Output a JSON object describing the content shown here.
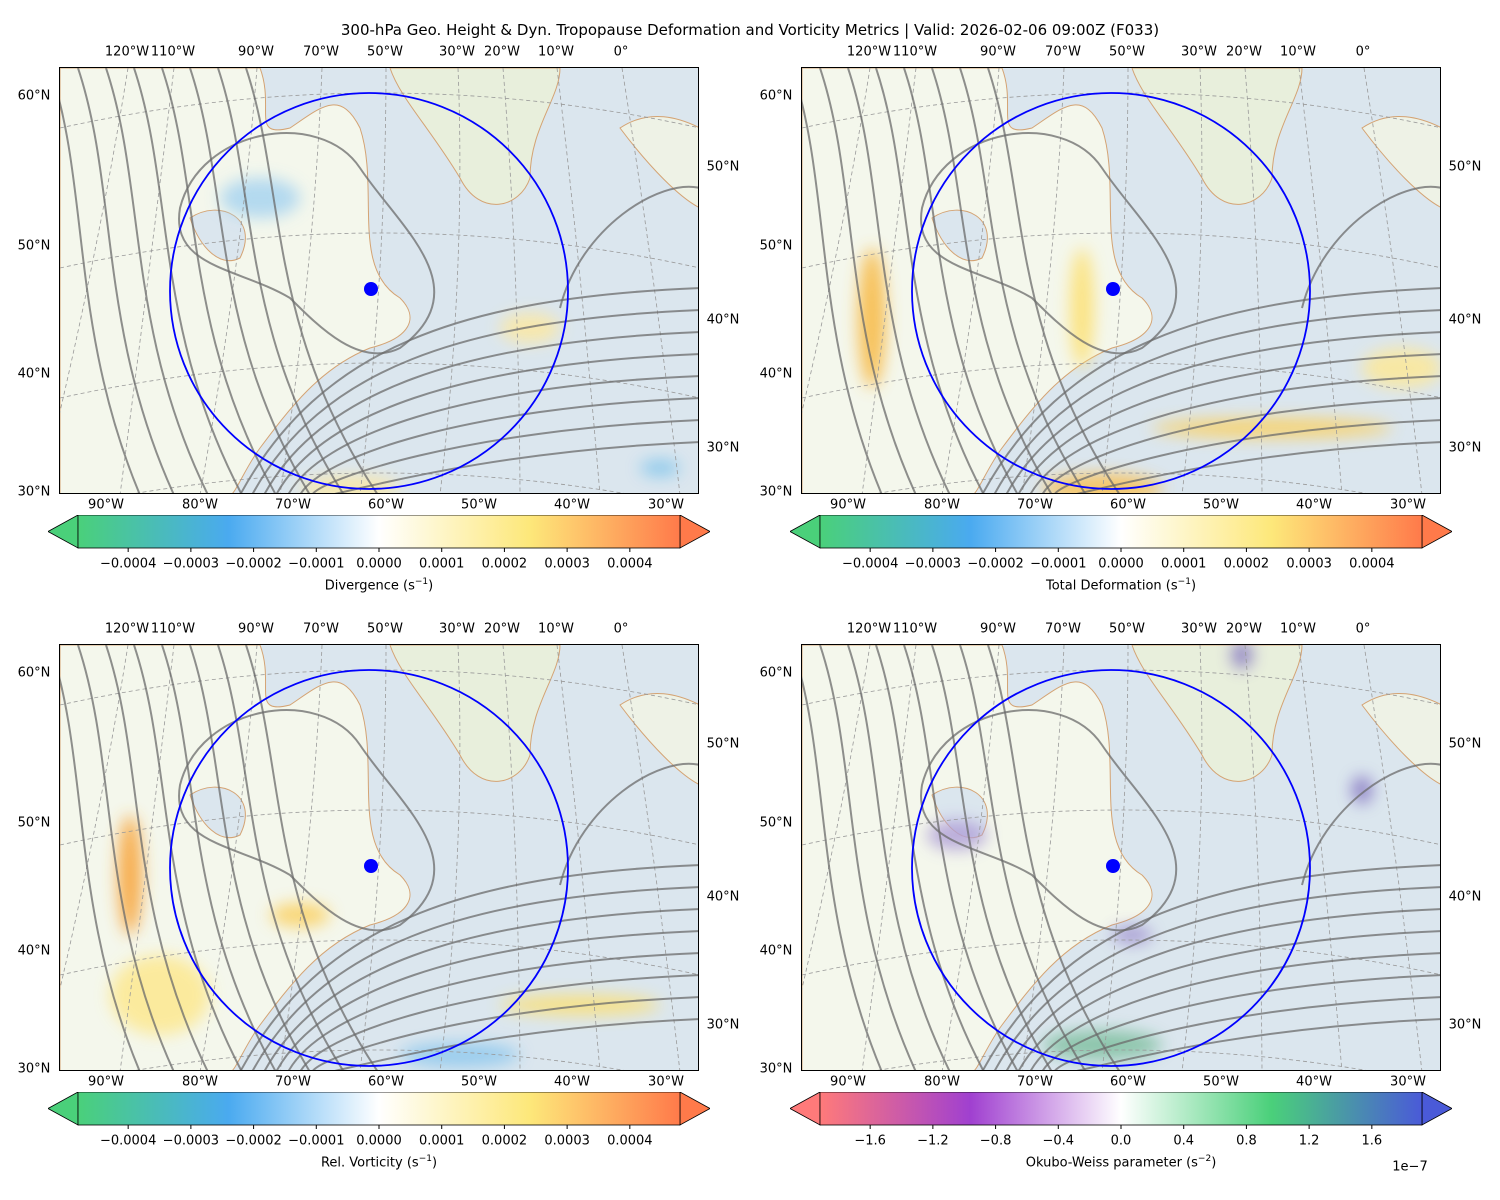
{
  "title": "300-hPa Geo. Height & Dyn. Tropopause Deformation and Vorticity Metrics |  Valid: 2026-02-06 09:00Z (F033)",
  "axes": {
    "top_lon_labels": [
      "120°W",
      "110°W",
      "90°W",
      "70°W",
      "50°W",
      "30°W",
      "20°W",
      "10°W",
      "0°"
    ],
    "bottom_lon_labels": [
      "90°W",
      "80°W",
      "70°W",
      "60°W",
      "50°W",
      "40°W",
      "30°W"
    ],
    "left_lat_labels": [
      "60°N",
      "50°N",
      "40°N",
      "30°N"
    ],
    "right_lat_labels": [
      "50°N",
      "40°N",
      "30°N"
    ]
  },
  "colors": {
    "ocean": "#dbe6ee",
    "land": "#f4f7ec",
    "coast": "#d4a373",
    "contour": "#6b6b6b",
    "circle": "#0000ff"
  },
  "chart_data": [
    {
      "type": "heatmap",
      "field": "divergence",
      "colorbar": {
        "label": "Divergence (s",
        "unit_exp": "−1",
        "label_end": ")",
        "ticks": [
          "−0.0004",
          "−0.0003",
          "−0.0002",
          "−0.0001",
          "0.0000",
          "0.0001",
          "0.0002",
          "0.0003",
          "0.0004"
        ],
        "tick_values": [
          -0.0004,
          -0.0003,
          -0.0002,
          -0.0001,
          0,
          0.0001,
          0.0002,
          0.0003,
          0.0004
        ],
        "range": [
          -0.00048,
          0.00048
        ],
        "extend": "both",
        "offset": "",
        "cmap": [
          "#4ad07a",
          "#4aaaf0",
          "#ffffff",
          "#fde87a",
          "#ff7a4a"
        ]
      },
      "marker": {
        "lat": 47,
        "lon": -61
      },
      "circle_radius_note": "blue ring"
    },
    {
      "type": "heatmap",
      "field": "total_deformation",
      "colorbar": {
        "label": "Total Deformation (s",
        "unit_exp": "−1",
        "label_end": ")",
        "ticks": [
          "−0.0004",
          "−0.0003",
          "−0.0002",
          "−0.0001",
          "0.0000",
          "0.0001",
          "0.0002",
          "0.0003",
          "0.0004"
        ],
        "tick_values": [
          -0.0004,
          -0.0003,
          -0.0002,
          -0.0001,
          0,
          0.0001,
          0.0002,
          0.0003,
          0.0004
        ],
        "range": [
          -0.00048,
          0.00048
        ],
        "extend": "both",
        "offset": "",
        "cmap": [
          "#4ad07a",
          "#4aaaf0",
          "#ffffff",
          "#fde87a",
          "#ff7a4a"
        ]
      },
      "marker": {
        "lat": 47,
        "lon": -61
      }
    },
    {
      "type": "heatmap",
      "field": "relative_vorticity",
      "colorbar": {
        "label": "Rel. Vorticity (s",
        "unit_exp": "−1",
        "label_end": ")",
        "ticks": [
          "−0.0004",
          "−0.0003",
          "−0.0002",
          "−0.0001",
          "0.0000",
          "0.0001",
          "0.0002",
          "0.0003",
          "0.0004"
        ],
        "tick_values": [
          -0.0004,
          -0.0003,
          -0.0002,
          -0.0001,
          0,
          0.0001,
          0.0002,
          0.0003,
          0.0004
        ],
        "range": [
          -0.00048,
          0.00048
        ],
        "extend": "both",
        "offset": "",
        "cmap": [
          "#4ad07a",
          "#4aaaf0",
          "#ffffff",
          "#fde87a",
          "#ff7a4a"
        ]
      },
      "marker": {
        "lat": 47,
        "lon": -61
      }
    },
    {
      "type": "heatmap",
      "field": "okubo_weiss",
      "colorbar": {
        "label": "Okubo-Weiss parameter (s",
        "unit_exp": "−2",
        "label_end": ")",
        "ticks": [
          "−1.6",
          "−1.2",
          "−0.8",
          "−0.4",
          "0.0",
          "0.4",
          "0.8",
          "1.2",
          "1.6"
        ],
        "tick_values": [
          -1.6,
          -1.2,
          -0.8,
          -0.4,
          0,
          0.4,
          0.8,
          1.2,
          1.6
        ],
        "range": [
          -1.92,
          1.92
        ],
        "extend": "both",
        "offset": "1e−7",
        "cmap": [
          "#ff7a7a",
          "#a040d0",
          "#ffffff",
          "#4ad07a",
          "#4a5ad8"
        ]
      },
      "marker": {
        "lat": 47,
        "lon": -61
      }
    }
  ]
}
